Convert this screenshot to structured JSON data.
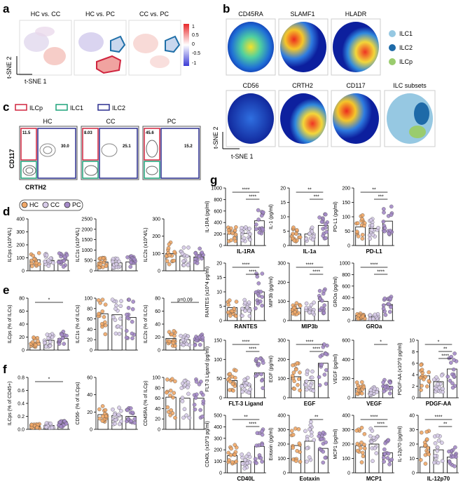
{
  "panel_labels": {
    "a": "a",
    "b": "b",
    "c": "c",
    "d": "d",
    "e": "e",
    "f": "f",
    "g": "g"
  },
  "colors": {
    "HC": "#f0a868",
    "CC": "#d7cbe8",
    "PC": "#a58ac8",
    "ILCp": "#d0253f",
    "ILC1": "#1fa37a",
    "ILC2": "#2b2f8f",
    "legend_ILC1": "#96c8e2",
    "legend_ILC2": "#1e6aa8",
    "legend_ILCp": "#9acc6e"
  },
  "panel_a": {
    "titles": [
      "HC vs. CC",
      "HC vs. PC",
      "CC vs. PC"
    ],
    "colorbar_ticks": [
      "1",
      "0.5",
      "0",
      "-0.5",
      "-1"
    ],
    "x_axis": "t-SNE 1",
    "y_axis": "t-SNE 2"
  },
  "panel_b": {
    "row1": [
      "CD45RA",
      "SLAMF1",
      "HLADR"
    ],
    "row2": [
      "CD56",
      "CRTH2",
      "CD117",
      "ILC subsets"
    ],
    "legend": [
      "ILC1",
      "ILC2",
      "ILCp"
    ],
    "x_axis": "t-SNE 1",
    "y_axis": "t-SNE 2"
  },
  "panel_c": {
    "legend": [
      "ILCp",
      "ILC1",
      "ILC2"
    ],
    "groups": [
      "HC",
      "CC",
      "PC"
    ],
    "ilcp_pct": [
      "11.5",
      "8.03",
      "45.6"
    ],
    "ilc2_pct": [
      "30.0",
      "25.1",
      "15.2"
    ],
    "x_axis": "CRTH2",
    "y_axis": "CD117"
  },
  "panel_d_legend": [
    "HC",
    "CC",
    "PC"
  ],
  "chart_data": [
    {
      "type": "bar",
      "panel": "d",
      "ylabel": "ILCps (x10^4/L)",
      "ylim": [
        0,
        400
      ],
      "yticks": [
        "0",
        "100",
        "200",
        "300",
        "400"
      ],
      "categories": [
        "HC",
        "CC",
        "PC"
      ],
      "values": [
        85,
        80,
        82
      ]
    },
    {
      "type": "bar",
      "panel": "d",
      "ylabel": "ILC1s (x10^4/L)",
      "ylim": [
        0,
        2500
      ],
      "yticks": [
        "0",
        "500",
        "1000",
        "1500",
        "2000",
        "2500"
      ],
      "categories": [
        "HC",
        "CC",
        "PC"
      ],
      "values": [
        420,
        380,
        430
      ]
    },
    {
      "type": "bar",
      "panel": "d",
      "ylabel": "ILC2s (x10^4/L)",
      "ylim": [
        0,
        300
      ],
      "yticks": [
        "0",
        "100",
        "200",
        "300"
      ],
      "categories": [
        "HC",
        "CC",
        "PC"
      ],
      "values": [
        100,
        85,
        80
      ]
    },
    {
      "type": "bar",
      "panel": "e",
      "ylabel": "ILCps (% of ILCs)",
      "ylim": [
        0,
        80
      ],
      "yticks": [
        "0",
        "20",
        "40",
        "60",
        "80"
      ],
      "categories": [
        "HC",
        "CC",
        "PC"
      ],
      "values": [
        12,
        15,
        18
      ],
      "sig": [
        "*"
      ]
    },
    {
      "type": "bar",
      "panel": "e",
      "ylabel": "ILC1s (% of ILCs)",
      "ylim": [
        0,
        100
      ],
      "yticks": [
        "0",
        "20",
        "40",
        "60",
        "80",
        "100"
      ],
      "categories": [
        "HC",
        "CC",
        "PC"
      ],
      "values": [
        70,
        68,
        63
      ]
    },
    {
      "type": "bar",
      "panel": "e",
      "ylabel": "ILC2s (% of ILCs)",
      "ylim": [
        0,
        80
      ],
      "yticks": [
        "0",
        "20",
        "40",
        "60",
        "80"
      ],
      "categories": [
        "HC",
        "CC",
        "PC"
      ],
      "values": [
        18,
        16,
        15
      ],
      "sig": [
        "p=0.09"
      ]
    },
    {
      "type": "bar",
      "panel": "f",
      "ylabel": "ILCps (% of CD45+)",
      "ylim": [
        0,
        0.8
      ],
      "yticks": [
        "0.0",
        "0.2",
        "0.4",
        "0.6",
        "0.8"
      ],
      "categories": [
        "HC",
        "CC",
        "PC"
      ],
      "values": [
        0.05,
        0.06,
        0.08
      ],
      "sig": [
        "*"
      ]
    },
    {
      "type": "bar",
      "panel": "f",
      "ylabel": "CD56- (% of ILCps)",
      "ylim": [
        0,
        60
      ],
      "yticks": [
        "0",
        "20",
        "40",
        "60"
      ],
      "categories": [
        "HC",
        "CC",
        "PC"
      ],
      "values": [
        17,
        16,
        15
      ]
    },
    {
      "type": "bar",
      "panel": "f",
      "ylabel": "CD45RA (% of ILCp)",
      "ylim": [
        0,
        100
      ],
      "yticks": [
        "0",
        "20",
        "40",
        "60",
        "80",
        "100"
      ],
      "categories": [
        "HC",
        "CC",
        "PC"
      ],
      "values": [
        62,
        60,
        60
      ]
    },
    {
      "type": "bar",
      "panel": "g",
      "name": "IL-1RA",
      "ylabel": "IL-1RA (pg/ml)",
      "ylim": [
        0,
        1000
      ],
      "yticks": [
        "0",
        "200",
        "400",
        "600",
        "800",
        "1000"
      ],
      "categories": [
        "HC",
        "CC",
        "PC"
      ],
      "values": [
        200,
        210,
        430
      ],
      "sig": [
        "****",
        "****"
      ]
    },
    {
      "type": "bar",
      "panel": "g",
      "name": "IL-1a",
      "ylabel": "IL-1 (pg/ml)",
      "ylim": [
        0,
        20
      ],
      "yticks": [
        "0",
        "5",
        "10",
        "15",
        "20"
      ],
      "categories": [
        "HC",
        "CC",
        "PC"
      ],
      "values": [
        4,
        4,
        7
      ],
      "sig": [
        "**",
        "***"
      ]
    },
    {
      "type": "bar",
      "panel": "g",
      "name": "PD-L1",
      "ylabel": "PD-L1 (pg/ml)",
      "ylim": [
        0,
        200
      ],
      "yticks": [
        "0",
        "50",
        "100",
        "150",
        "200"
      ],
      "categories": [
        "HC",
        "CC",
        "PC"
      ],
      "values": [
        65,
        60,
        85
      ],
      "sig": [
        "**",
        "***"
      ]
    },
    {
      "type": "bar",
      "panel": "g",
      "name": "RANTES",
      "ylabel": "RANTES (x10^4 pg/ml)",
      "ylim": [
        0,
        20
      ],
      "yticks": [
        "0",
        "5",
        "10",
        "15",
        "20"
      ],
      "categories": [
        "HC",
        "CC",
        "PC"
      ],
      "values": [
        4.5,
        4.5,
        10
      ],
      "sig": [
        "****",
        "****"
      ]
    },
    {
      "type": "bar",
      "panel": "g",
      "name": "MIP3b",
      "ylabel": "MIP3b (pg/ml)",
      "ylim": [
        0,
        300
      ],
      "yticks": [
        "0",
        "100",
        "200",
        "300"
      ],
      "categories": [
        "HC",
        "CC",
        "PC"
      ],
      "values": [
        65,
        60,
        100
      ],
      "sig": [
        "****",
        "****"
      ]
    },
    {
      "type": "bar",
      "panel": "g",
      "name": "GROa",
      "ylabel": "GROa (pg/ml)",
      "ylim": [
        0,
        1000
      ],
      "yticks": [
        "0",
        "200",
        "400",
        "600",
        "800",
        "1000"
      ],
      "categories": [
        "HC",
        "CC",
        "PC"
      ],
      "values": [
        90,
        70,
        280
      ],
      "sig": [
        "****",
        "****"
      ]
    },
    {
      "type": "bar",
      "panel": "g",
      "name": "FLT-3 Ligand",
      "ylabel": "FLT-3 Ligand (pg/ml)",
      "ylim": [
        0,
        150
      ],
      "yticks": [
        "0",
        "50",
        "100",
        "150"
      ],
      "categories": [
        "HC",
        "CC",
        "PC"
      ],
      "values": [
        45,
        35,
        65
      ],
      "sig": [
        "****",
        "****"
      ]
    },
    {
      "type": "bar",
      "panel": "g",
      "name": "EGF",
      "ylabel": "EGF (pg/ml)",
      "ylim": [
        0,
        300
      ],
      "yticks": [
        "0",
        "100",
        "200",
        "300"
      ],
      "categories": [
        "HC",
        "CC",
        "PC"
      ],
      "values": [
        110,
        90,
        180
      ],
      "sig": [
        "****",
        "****"
      ]
    },
    {
      "type": "bar",
      "panel": "g",
      "name": "VEGF",
      "ylabel": "VEGF (pg/ml)",
      "ylim": [
        0,
        600
      ],
      "yticks": [
        "0",
        "200",
        "400",
        "600"
      ],
      "categories": [
        "HC",
        "CC",
        "PC"
      ],
      "values": [
        100,
        70,
        120
      ],
      "sig": [
        "*"
      ]
    },
    {
      "type": "bar",
      "panel": "g",
      "name": "PDGF-AA",
      "ylabel": "PDGF-AA (x10^3 pg/ml)",
      "ylim": [
        0,
        10
      ],
      "yticks": [
        "0",
        "2",
        "4",
        "6",
        "8",
        "10"
      ],
      "categories": [
        "HC",
        "CC",
        "PC"
      ],
      "values": [
        3.8,
        2.8,
        5
      ],
      "sig": [
        "*",
        "**",
        "****"
      ]
    },
    {
      "type": "bar",
      "panel": "g",
      "name": "CD40L",
      "ylabel": "CD40L (x10^3 pg/ml)",
      "ylim": [
        0,
        500
      ],
      "yticks": [
        "0",
        "100",
        "200",
        "300",
        "400",
        "500"
      ],
      "categories": [
        "HC",
        "CC",
        "PC"
      ],
      "values": [
        150,
        100,
        230
      ],
      "sig": [
        "**",
        "****"
      ]
    },
    {
      "type": "bar",
      "panel": "g",
      "name": "Eotaxin",
      "ylabel": "Eotaxin (pg/ml)",
      "ylim": [
        0,
        400
      ],
      "yticks": [
        "0",
        "100",
        "200",
        "300",
        "400"
      ],
      "categories": [
        "HC",
        "CC",
        "PC"
      ],
      "values": [
        190,
        220,
        170
      ],
      "sig": [
        "**"
      ]
    },
    {
      "type": "bar",
      "panel": "g",
      "name": "MCP1",
      "ylabel": "MCP1 (pg/ml)",
      "ylim": [
        0,
        400
      ],
      "yticks": [
        "0",
        "100",
        "200",
        "300",
        "400"
      ],
      "categories": [
        "HC",
        "CC",
        "PC"
      ],
      "values": [
        190,
        200,
        140
      ],
      "sig": [
        "****",
        "****"
      ]
    },
    {
      "type": "bar",
      "panel": "g",
      "name": "IL-12p70",
      "ylabel": "IL-12p70 (pg/ml)",
      "ylim": [
        0,
        40
      ],
      "yticks": [
        "0",
        "10",
        "20",
        "30",
        "40"
      ],
      "categories": [
        "HC",
        "CC",
        "PC"
      ],
      "values": [
        18,
        16,
        11
      ],
      "sig": [
        "****",
        "**"
      ]
    }
  ]
}
